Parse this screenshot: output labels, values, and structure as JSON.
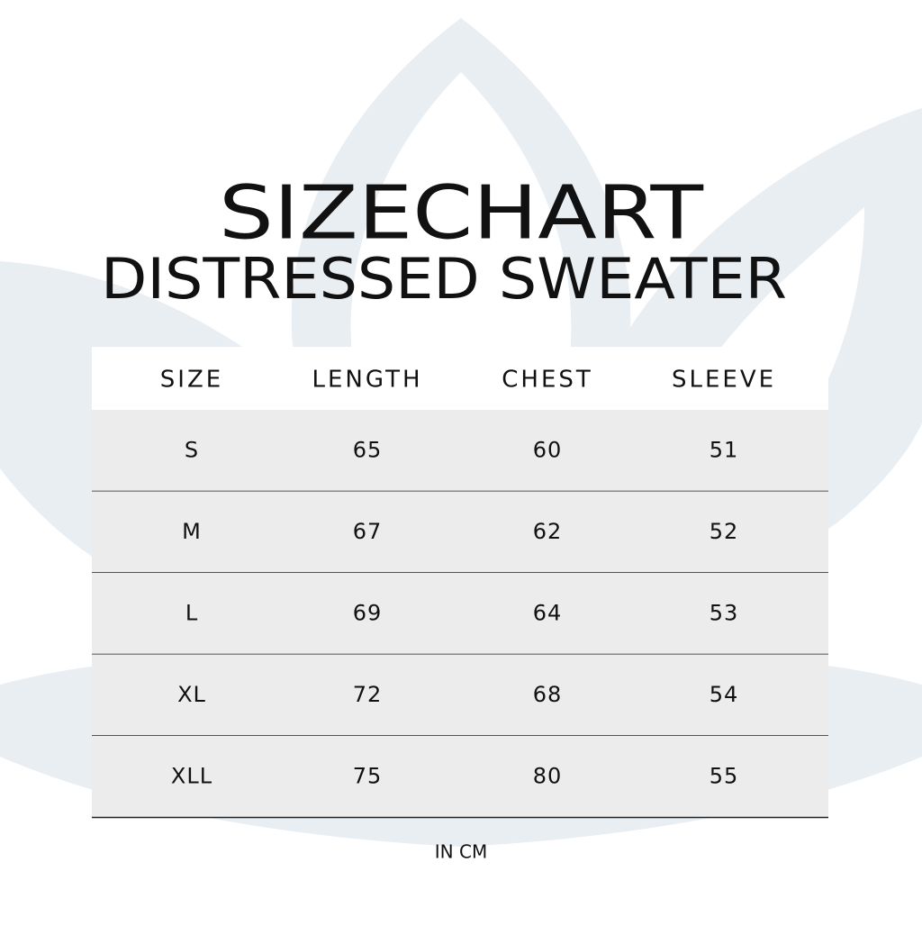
{
  "header": {
    "title": "SIZECHART",
    "subtitle": "DISTRESSED SWEATER"
  },
  "table": {
    "columns": [
      "SIZE",
      "LENGTH",
      "CHEST",
      "SLEEVE"
    ],
    "rows": [
      [
        "S",
        65,
        60,
        51
      ],
      [
        "M",
        67,
        62,
        52
      ],
      [
        "L",
        69,
        64,
        53
      ],
      [
        "XL",
        72,
        68,
        54
      ],
      [
        "XLL",
        75,
        80,
        55
      ]
    ]
  },
  "footnote": "IN CM"
}
